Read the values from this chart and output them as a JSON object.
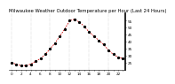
{
  "title": "Milwaukee Weather Outdoor Temperature per Hour (Last 24 Hours)",
  "hours": [
    0,
    1,
    2,
    3,
    4,
    5,
    6,
    7,
    8,
    9,
    10,
    11,
    12,
    13,
    14,
    15,
    16,
    17,
    18,
    19,
    20,
    21,
    22,
    23
  ],
  "temps": [
    25,
    24,
    23,
    23,
    24,
    26,
    28,
    31,
    35,
    39,
    44,
    49,
    55,
    56,
    54,
    51,
    47,
    44,
    41,
    38,
    34,
    31,
    29,
    28
  ],
  "line_color": "#cc0000",
  "dot_color": "#000000",
  "bg_color": "#ffffff",
  "grid_color": "#999999",
  "title_color": "#000000",
  "ylim": [
    20,
    60
  ],
  "ytick_vals": [
    25,
    30,
    35,
    40,
    45,
    50,
    55
  ],
  "ytick_labels": [
    "25",
    "30",
    "35",
    "40",
    "45",
    "50",
    "55"
  ],
  "title_fontsize": 3.8,
  "tick_fontsize": 3.0,
  "line_width": 0.6,
  "dot_size": 1.8,
  "grid_every": 4
}
